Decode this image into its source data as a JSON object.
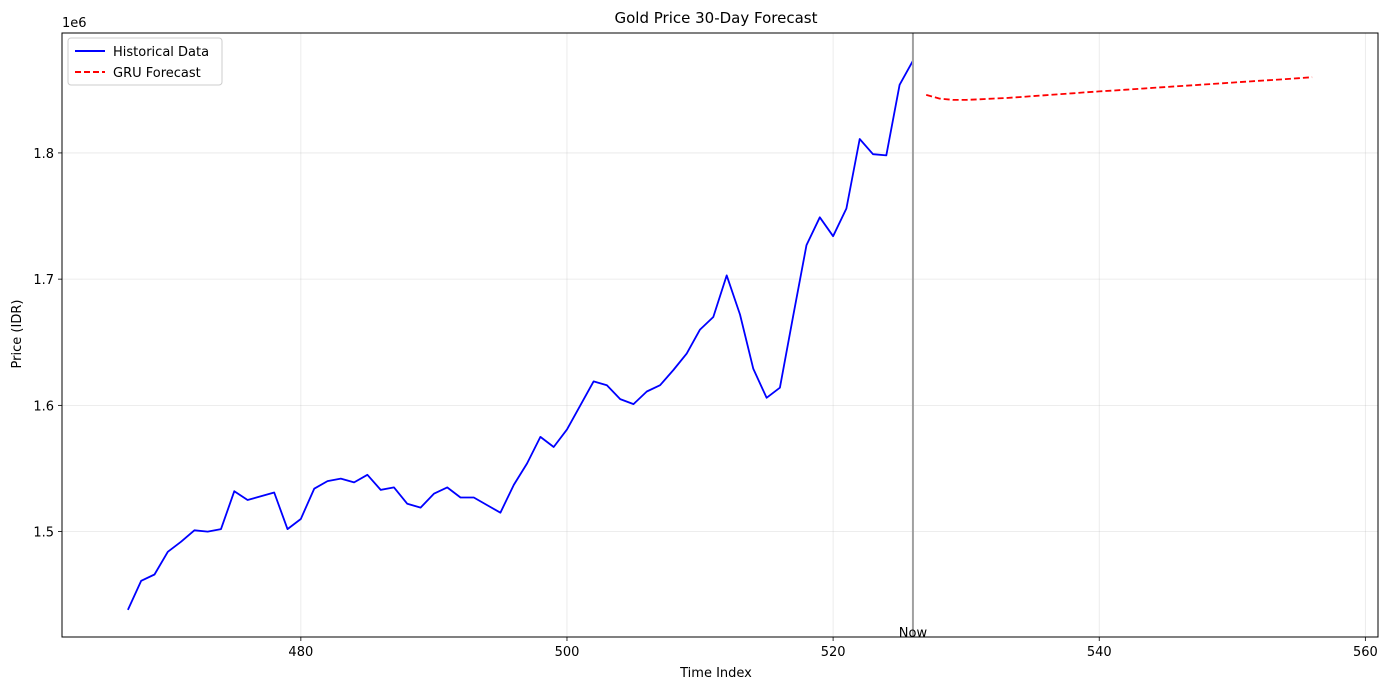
{
  "chart_data": {
    "type": "line",
    "title": "Gold Price 30-Day Forecast",
    "xlabel": "Time Index",
    "ylabel": "Price (IDR)",
    "y_offset_label": "1e6",
    "xlim": [
      462.05,
      560.95
    ],
    "ylim": [
      1416500,
      1895000
    ],
    "xticks": [
      480,
      500,
      520,
      540,
      560
    ],
    "yticks": [
      1500000,
      1600000,
      1700000,
      1800000
    ],
    "ytick_labels": [
      "1.5",
      "1.6",
      "1.7",
      "1.8"
    ],
    "grid": true,
    "legend_position": "upper-left",
    "vline": {
      "x": 526,
      "label": "Now",
      "color": "#a0a0a0"
    },
    "series": [
      {
        "name": "Historical Data",
        "color": "#0000ff",
        "style": "solid",
        "x": [
          467,
          468,
          469,
          470,
          471,
          472,
          473,
          474,
          475,
          476,
          477,
          478,
          479,
          480,
          481,
          482,
          483,
          484,
          485,
          486,
          487,
          488,
          489,
          490,
          491,
          492,
          493,
          494,
          495,
          496,
          497,
          498,
          499,
          500,
          501,
          502,
          503,
          504,
          505,
          506,
          507,
          508,
          509,
          510,
          511,
          512,
          513,
          514,
          515,
          516,
          517,
          518,
          519,
          520,
          521,
          522,
          523,
          524,
          525,
          526
        ],
        "y": [
          1438000,
          1461000,
          1466000,
          1484000,
          1492000,
          1501000,
          1500000,
          1502000,
          1532000,
          1525000,
          1528000,
          1531000,
          1502000,
          1510000,
          1534000,
          1540000,
          1542000,
          1539000,
          1545000,
          1533000,
          1535000,
          1522000,
          1519000,
          1530000,
          1535000,
          1527000,
          1527000,
          1521000,
          1515000,
          1537000,
          1554000,
          1575000,
          1567000,
          1581000,
          1600000,
          1619000,
          1616000,
          1605000,
          1601000,
          1611000,
          1616000,
          1628000,
          1641000,
          1660000,
          1670000,
          1703000,
          1672000,
          1629000,
          1606000,
          1614000,
          1671000,
          1727000,
          1749000,
          1734000,
          1756000,
          1811000,
          1799000,
          1798000,
          1854000,
          1873000
        ]
      },
      {
        "name": "GRU Forecast",
        "color": "#ff0000",
        "style": "dashed",
        "x": [
          527,
          528,
          529,
          530,
          531,
          532,
          533,
          534,
          535,
          536,
          537,
          538,
          539,
          540,
          541,
          542,
          543,
          544,
          545,
          546,
          547,
          548,
          549,
          550,
          551,
          552,
          553,
          554,
          555,
          556
        ],
        "y": [
          1846000,
          1843000,
          1842000,
          1842000,
          1842500,
          1843000,
          1843500,
          1844200,
          1845000,
          1845700,
          1846500,
          1847200,
          1848000,
          1848700,
          1849400,
          1850100,
          1850800,
          1851500,
          1852200,
          1852900,
          1853600,
          1854300,
          1855000,
          1855700,
          1856400,
          1857100,
          1857800,
          1858500,
          1859200,
          1860000
        ]
      }
    ]
  }
}
